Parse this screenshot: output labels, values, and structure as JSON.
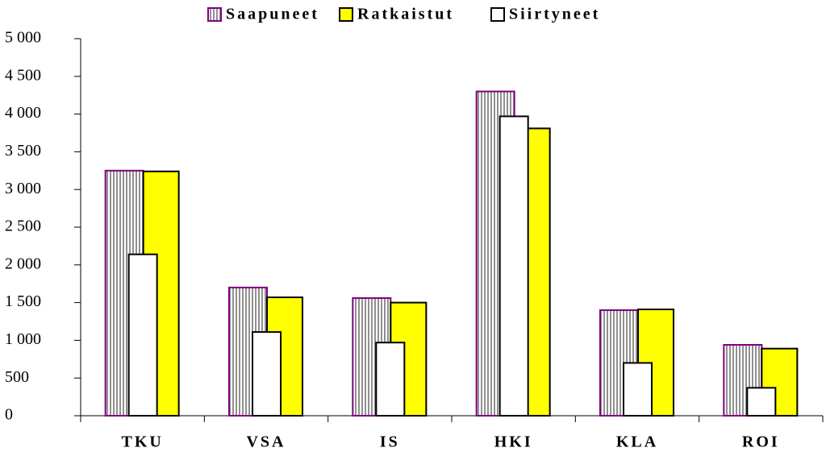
{
  "chart_data": {
    "type": "bar",
    "categories": [
      "TKU",
      "VSA",
      "IS",
      "HKI",
      "KLA",
      "ROI"
    ],
    "series": [
      {
        "name": "Saapuneet",
        "color": "#800080",
        "hatch": true,
        "values": [
          3250,
          1700,
          1560,
          4300,
          1400,
          940
        ]
      },
      {
        "name": "Ratkaistut",
        "color": "#ffff00",
        "values": [
          3240,
          1570,
          1500,
          3810,
          1410,
          890
        ]
      },
      {
        "name": "Siirtyneet",
        "color": "#ffffff",
        "values": [
          2140,
          1110,
          970,
          3970,
          700,
          370
        ]
      }
    ],
    "ylim": [
      0,
      5000
    ],
    "yticks": [
      0,
      500,
      {
        "value": 1000,
        "label": "1 000"
      },
      {
        "value": 1500,
        "label": "1 500"
      },
      {
        "value": 2000,
        "label": "2 000"
      },
      {
        "value": 2500,
        "label": "2 500"
      },
      {
        "value": 3000,
        "label": "3 000"
      },
      {
        "value": 3500,
        "label": "3 500"
      },
      {
        "value": 4000,
        "label": "4 000"
      },
      {
        "value": 4500,
        "label": "4 500"
      },
      {
        "value": 5000,
        "label": "5 000"
      }
    ],
    "legend": "top",
    "grid": false
  }
}
